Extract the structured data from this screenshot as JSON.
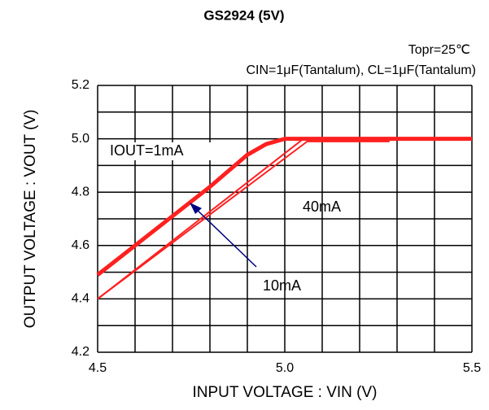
{
  "chart_data": {
    "type": "line",
    "title": "GS2924 (5V)",
    "subtitle": [
      "Topr=25℃",
      "CIN=1μF(Tantalum), CL=1μF(Tantalum)"
    ],
    "xlabel": "INPUT VOLTAGE : VIN (V)",
    "ylabel": "OUTPUT VOLTAGE : VOUT (V)",
    "xlim": [
      4.5,
      5.5
    ],
    "ylim": [
      4.2,
      5.2
    ],
    "xticks": [
      4.5,
      {
        "value": 5,
        "label": "5.0"
      },
      5.5
    ],
    "yticks": [
      4.2,
      4.4,
      4.6,
      4.8,
      {
        "value": 5,
        "label": "5.0"
      },
      5.2
    ],
    "xgrid": [
      4.5,
      4.6,
      4.7,
      4.8,
      4.9,
      5.0,
      5.1,
      5.2,
      5.3,
      5.4,
      5.5
    ],
    "ygrid": [
      4.2,
      4.3,
      4.4,
      4.5,
      4.6,
      4.7,
      4.8,
      4.9,
      5.0,
      5.1,
      5.2
    ],
    "grid": true,
    "series": [
      {
        "color": "#ff2020",
        "width": 5,
        "x": [
          4.5,
          4.6,
          4.7,
          4.8,
          4.9,
          4.95,
          5.0,
          5.5
        ],
        "values": [
          4.49,
          4.6,
          4.71,
          4.82,
          4.94,
          4.98,
          5.0,
          5.0
        ]
      },
      {
        "color": "#ff2020",
        "width": 2,
        "x": [
          4.5,
          5.05,
          5.5
        ],
        "values": [
          4.4,
          5.0,
          5.0
        ]
      },
      {
        "color": "#ff2020",
        "width": 2,
        "x": [
          4.5,
          5.06,
          5.28
        ],
        "values": [
          4.4,
          4.99,
          4.99
        ]
      }
    ],
    "annotations": [
      "IOUT=1mA",
      "40mA",
      "10mA"
    ]
  }
}
